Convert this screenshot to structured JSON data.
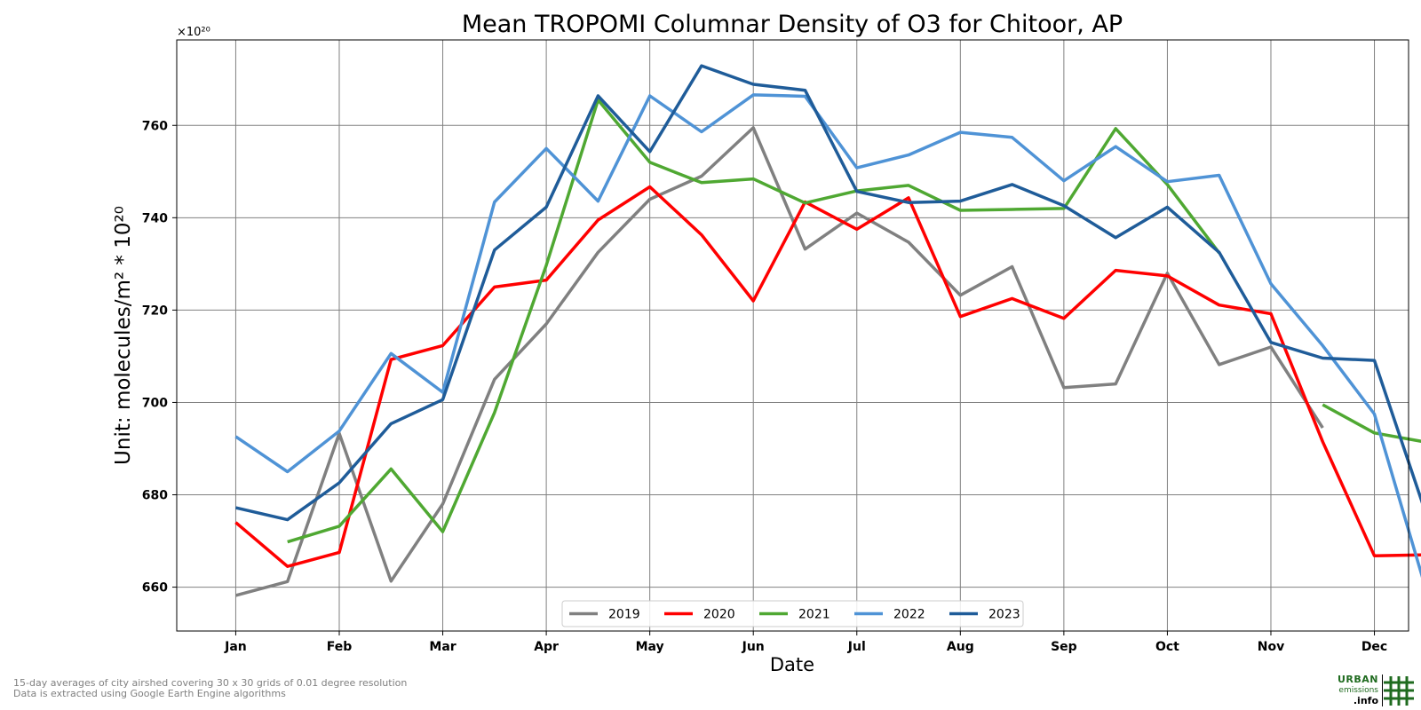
{
  "chart_data": {
    "type": "line",
    "title": "Mean TROPOMI Columnar Density of O3 for Chitoor, AP",
    "xlabel": "Date",
    "ylabel": "Unit: molecules/m² * 10²⁰",
    "offset_label": "×10²⁰",
    "xlim": [
      0.43,
      12.33
    ],
    "ylim": [
      650.5,
      778.5
    ],
    "x_ticks": [
      1,
      2,
      3,
      4,
      5,
      6,
      7,
      8,
      9,
      10,
      11,
      12
    ],
    "x_tick_labels": [
      "Jan",
      "Feb",
      "Mar",
      "Apr",
      "May",
      "Jun",
      "Jul",
      "Aug",
      "Sep",
      "Oct",
      "Nov",
      "Dec"
    ],
    "y_ticks": [
      660,
      680,
      700,
      720,
      740,
      760
    ],
    "grid": true,
    "legend_position": "bottom-center",
    "x": [
      1,
      1.5,
      2,
      2.5,
      3,
      3.5,
      4,
      4.5,
      5,
      5.5,
      6,
      6.5,
      7,
      7.5,
      8,
      8.5,
      9,
      9.5,
      10,
      10.5,
      11,
      11.5,
      12,
      12.5
    ],
    "series": [
      {
        "name": "2019",
        "color": "#808080",
        "values": [
          658.2,
          661.2,
          693.3,
          661.3,
          678.0,
          705.0,
          717.0,
          732.5,
          744.0,
          749.0,
          759.5,
          733.2,
          741.0,
          734.7,
          723.2,
          729.4,
          703.2,
          704.0,
          728.0,
          708.2,
          712.0,
          694.5,
          null,
          null
        ]
      },
      {
        "name": "2020",
        "color": "#ff0000",
        "values": [
          674.0,
          664.5,
          667.5,
          709.3,
          712.3,
          725.0,
          726.5,
          739.5,
          746.7,
          736.3,
          722.0,
          743.4,
          737.5,
          744.3,
          718.6,
          722.5,
          718.2,
          728.6,
          727.4,
          721.1,
          719.2,
          691.5,
          666.8,
          667.0
        ]
      },
      {
        "name": "2021",
        "color": "#4fa832",
        "values": [
          null,
          669.8,
          673.2,
          685.6,
          672.0,
          697.8,
          729.7,
          765.5,
          752.0,
          747.6,
          748.4,
          743.2,
          745.8,
          747.0,
          741.6,
          741.8,
          742.0,
          759.3,
          747.2,
          732.4,
          null,
          699.5,
          693.4,
          691.4
        ]
      },
      {
        "name": "2022",
        "color": "#4f93d6",
        "values": [
          692.6,
          685.0,
          693.8,
          710.6,
          702.2,
          743.4,
          755.0,
          743.6,
          766.4,
          758.6,
          766.6,
          766.3,
          750.8,
          753.6,
          758.5,
          757.4,
          748.0,
          755.4,
          747.8,
          749.2,
          725.7,
          712.3,
          697.5,
          659.4
        ]
      },
      {
        "name": "2023",
        "color": "#1f5c99",
        "values": [
          677.2,
          674.6,
          682.6,
          695.4,
          700.6,
          733.0,
          742.3,
          766.4,
          754.3,
          772.9,
          768.9,
          767.6,
          745.7,
          743.3,
          743.6,
          747.2,
          742.6,
          735.7,
          742.3,
          732.5,
          713.0,
          709.6,
          709.1,
          675.8
        ]
      }
    ]
  },
  "footer": {
    "line1": "15-day averages of city airshed covering 30 x 30 grids of 0.01 degree resolution",
    "line2": "Data is extracted using Google Earth Engine algorithms"
  },
  "logo": {
    "line1": "URBAN",
    "line2": "emissions",
    "line3": ".info"
  }
}
